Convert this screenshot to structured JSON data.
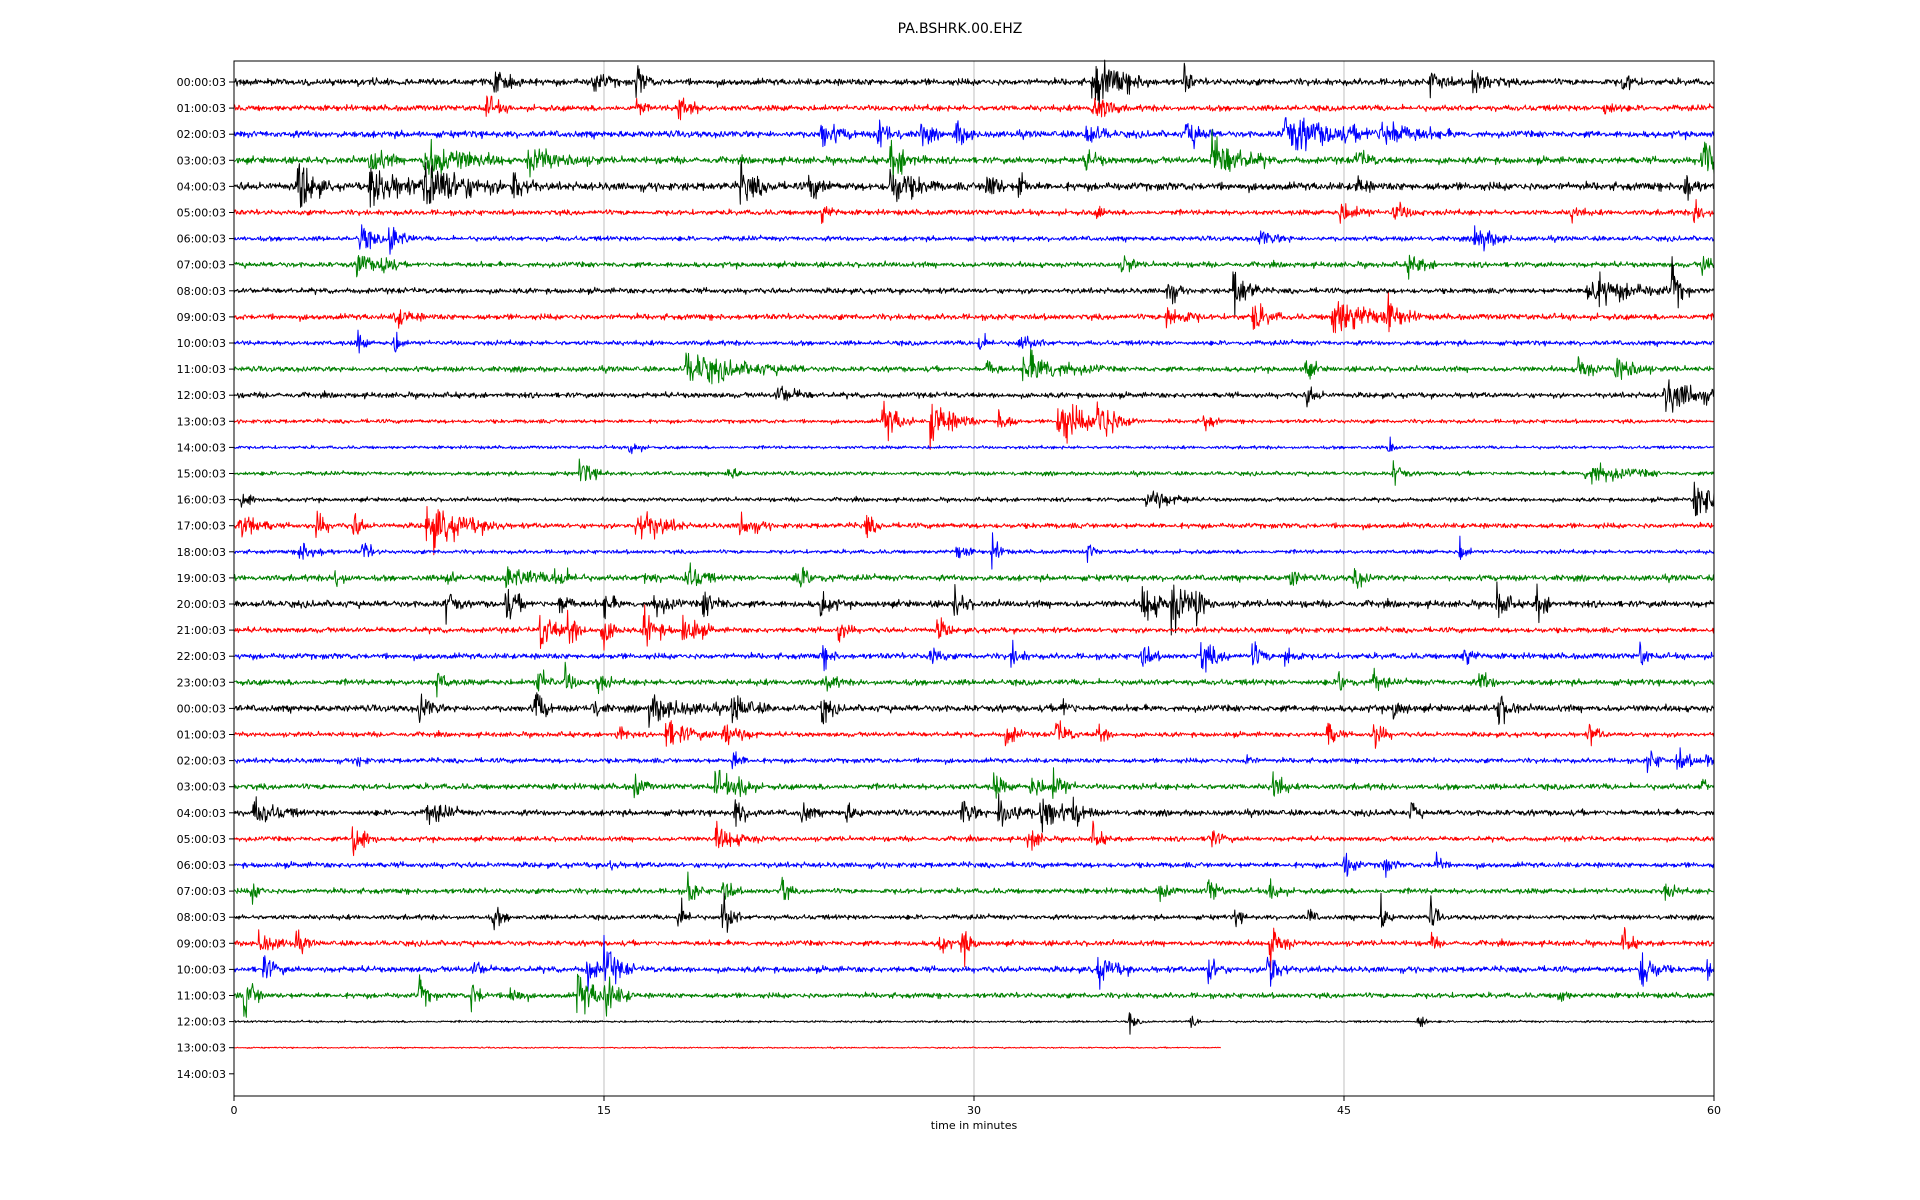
{
  "chart_data": {
    "type": "line",
    "title": "PA.BSHRK.00.EHZ",
    "xlabel": "time in minutes",
    "ylabel": "",
    "xlim": [
      0,
      60
    ],
    "x_ticks": [
      0,
      15,
      30,
      45,
      60
    ],
    "grid": "vertical",
    "row_labels": [
      "00:00:03",
      "01:00:03",
      "02:00:03",
      "03:00:03",
      "04:00:03",
      "05:00:03",
      "06:00:03",
      "07:00:03",
      "08:00:03",
      "09:00:03",
      "10:00:03",
      "11:00:03",
      "12:00:03",
      "13:00:03",
      "14:00:03",
      "15:00:03",
      "16:00:03",
      "17:00:03",
      "18:00:03",
      "19:00:03",
      "20:00:03",
      "21:00:03",
      "22:00:03",
      "23:00:03",
      "00:00:03",
      "01:00:03",
      "02:00:03",
      "03:00:03",
      "04:00:03",
      "05:00:03",
      "06:00:03",
      "07:00:03",
      "08:00:03",
      "09:00:03",
      "10:00:03",
      "11:00:03",
      "12:00:03",
      "13:00:03",
      "14:00:03"
    ],
    "color_cycle": [
      "#000000",
      "#ff0000",
      "#0000ff",
      "#008000"
    ],
    "row_end_minutes": [
      60,
      60,
      60,
      60,
      60,
      60,
      60,
      60,
      60,
      60,
      60,
      60,
      60,
      60,
      60,
      60,
      60,
      60,
      60,
      60,
      60,
      60,
      60,
      60,
      60,
      60,
      60,
      60,
      60,
      60,
      60,
      60,
      60,
      60,
      60,
      60,
      60,
      40,
      0
    ],
    "row_noise_level": [
      0.25,
      0.22,
      0.25,
      0.25,
      0.3,
      0.2,
      0.18,
      0.2,
      0.2,
      0.22,
      0.18,
      0.2,
      0.2,
      0.15,
      0.12,
      0.15,
      0.15,
      0.2,
      0.15,
      0.22,
      0.25,
      0.2,
      0.22,
      0.22,
      0.25,
      0.18,
      0.18,
      0.22,
      0.22,
      0.18,
      0.2,
      0.2,
      0.18,
      0.2,
      0.22,
      0.2,
      0.08,
      0.05,
      0
    ],
    "events": [
      [
        [
          10.5,
          0.6,
          0.5
        ],
        [
          14.5,
          0.5,
          0.5
        ],
        [
          16.3,
          0.8,
          0.3
        ],
        [
          34.8,
          1.2,
          1.0
        ],
        [
          38.5,
          0.9,
          0.2
        ],
        [
          48.5,
          0.5,
          0.5
        ],
        [
          50.2,
          0.6,
          0.6
        ],
        [
          56.3,
          0.5,
          0.3
        ]
      ],
      [
        [
          10.2,
          0.6,
          0.4
        ],
        [
          16.3,
          0.6,
          0.2
        ],
        [
          18.0,
          0.9,
          0.4
        ],
        [
          34.8,
          0.8,
          0.5
        ],
        [
          55.5,
          0.4,
          0.4
        ]
      ],
      [
        [
          23.8,
          0.6,
          0.6
        ],
        [
          26.1,
          0.8,
          0.4
        ],
        [
          27.8,
          0.8,
          0.3
        ],
        [
          29.2,
          0.7,
          0.4
        ],
        [
          34.5,
          0.6,
          0.5
        ],
        [
          38.6,
          0.7,
          0.5
        ],
        [
          42.5,
          0.9,
          2.0
        ],
        [
          46.5,
          0.6,
          1.2
        ]
      ],
      [
        [
          5.5,
          0.8,
          0.5
        ],
        [
          7.7,
          1.0,
          1.3
        ],
        [
          11.9,
          0.6,
          1.2
        ],
        [
          26.6,
          0.9,
          0.6
        ],
        [
          34.5,
          0.5,
          0.4
        ],
        [
          39.6,
          1.1,
          1.0
        ],
        [
          45.5,
          0.5,
          0.4
        ],
        [
          59.5,
          1.3,
          0.5
        ]
      ],
      [
        [
          2.6,
          1.3,
          0.5
        ],
        [
          5.5,
          1.2,
          0.9
        ],
        [
          7.7,
          1.3,
          1.3
        ],
        [
          11.3,
          1.2,
          0.4
        ],
        [
          20.5,
          0.9,
          0.6
        ],
        [
          23.3,
          0.7,
          0.4
        ],
        [
          26.6,
          1.0,
          0.8
        ],
        [
          30.5,
          1.1,
          0.3
        ],
        [
          31.8,
          1.0,
          0.2
        ],
        [
          45.5,
          0.5,
          0.3
        ],
        [
          58.8,
          0.8,
          0.3
        ]
      ],
      [
        [
          23.8,
          0.5,
          0.3
        ],
        [
          35.0,
          0.4,
          0.2
        ],
        [
          44.8,
          0.5,
          0.6
        ],
        [
          47.0,
          0.5,
          0.5
        ],
        [
          54.2,
          0.4,
          0.3
        ],
        [
          59.2,
          0.6,
          0.3
        ]
      ],
      [
        [
          5.1,
          0.8,
          0.4
        ],
        [
          6.3,
          1.0,
          0.4
        ],
        [
          41.5,
          0.4,
          0.6
        ],
        [
          50.3,
          0.7,
          0.6
        ]
      ],
      [
        [
          5.0,
          0.8,
          0.4
        ],
        [
          6.0,
          0.8,
          0.3
        ],
        [
          36.0,
          0.6,
          0.3
        ],
        [
          47.6,
          0.5,
          0.5
        ],
        [
          59.5,
          0.6,
          0.3
        ]
      ],
      [
        [
          37.8,
          0.9,
          0.3
        ],
        [
          40.5,
          1.2,
          0.5
        ],
        [
          54.8,
          0.8,
          1.5
        ],
        [
          58.3,
          1.2,
          0.3
        ]
      ],
      [
        [
          6.5,
          0.5,
          0.5
        ],
        [
          37.8,
          0.7,
          0.6
        ],
        [
          41.3,
          0.7,
          0.5
        ],
        [
          44.5,
          0.9,
          1.5
        ],
        [
          46.8,
          0.7,
          0.3
        ]
      ],
      [
        [
          5.0,
          0.7,
          0.2
        ],
        [
          6.5,
          0.7,
          0.2
        ],
        [
          30.2,
          0.5,
          0.3
        ],
        [
          31.8,
          0.4,
          0.5
        ]
      ],
      [
        [
          18.3,
          0.7,
          2.0
        ],
        [
          30.5,
          0.5,
          0.3
        ],
        [
          32.0,
          0.8,
          1.3
        ],
        [
          43.4,
          0.6,
          0.3
        ],
        [
          54.5,
          0.7,
          0.4
        ],
        [
          56.0,
          0.8,
          0.6
        ]
      ],
      [
        [
          22.0,
          0.5,
          0.6
        ],
        [
          43.5,
          0.5,
          0.3
        ],
        [
          58.0,
          0.8,
          1.3
        ]
      ],
      [
        [
          26.3,
          1.2,
          0.5
        ],
        [
          28.2,
          1.1,
          0.8
        ],
        [
          31.0,
          0.9,
          0.3
        ],
        [
          33.4,
          1.3,
          0.8
        ],
        [
          35.0,
          1.2,
          0.7
        ],
        [
          39.3,
          0.5,
          0.3
        ]
      ],
      [
        [
          16.0,
          0.5,
          0.3
        ],
        [
          46.8,
          0.6,
          0.2
        ]
      ],
      [
        [
          14.0,
          0.6,
          0.5
        ],
        [
          20.0,
          0.4,
          0.3
        ],
        [
          47.0,
          0.6,
          0.3
        ],
        [
          54.8,
          0.6,
          1.2
        ]
      ],
      [
        [
          0.3,
          0.6,
          0.3
        ],
        [
          37.0,
          0.6,
          0.8
        ],
        [
          59.2,
          0.9,
          1.3
        ]
      ],
      [
        [
          0.2,
          0.8,
          0.6
        ],
        [
          3.3,
          0.8,
          0.3
        ],
        [
          4.8,
          0.7,
          0.3
        ],
        [
          7.8,
          1.1,
          1.3
        ],
        [
          16.3,
          1.0,
          0.8
        ],
        [
          20.5,
          0.6,
          0.5
        ],
        [
          25.6,
          0.6,
          0.3
        ]
      ],
      [
        [
          2.6,
          0.5,
          0.6
        ],
        [
          5.2,
          0.6,
          0.3
        ],
        [
          29.3,
          0.5,
          0.3
        ],
        [
          30.7,
          0.7,
          0.3
        ],
        [
          34.6,
          0.5,
          0.2
        ],
        [
          49.7,
          0.7,
          0.2
        ]
      ],
      [
        [
          4.1,
          0.5,
          0.3
        ],
        [
          8.6,
          0.6,
          0.2
        ],
        [
          11.0,
          0.7,
          0.8
        ],
        [
          13.0,
          0.6,
          0.5
        ],
        [
          16.6,
          0.5,
          0.3
        ],
        [
          18.3,
          0.8,
          0.5
        ],
        [
          22.8,
          0.5,
          0.6
        ],
        [
          42.8,
          0.5,
          0.3
        ],
        [
          45.4,
          0.6,
          0.3
        ]
      ],
      [
        [
          8.6,
          0.8,
          0.3
        ],
        [
          11.0,
          0.9,
          0.4
        ],
        [
          13.2,
          0.7,
          0.3
        ],
        [
          15.0,
          0.6,
          0.3
        ],
        [
          17.0,
          0.6,
          0.5
        ],
        [
          19.0,
          0.6,
          0.5
        ],
        [
          23.8,
          0.8,
          0.3
        ],
        [
          29.2,
          0.8,
          0.3
        ],
        [
          36.8,
          1.0,
          0.6
        ],
        [
          38.0,
          1.3,
          0.6
        ],
        [
          39.0,
          0.9,
          0.3
        ],
        [
          51.2,
          1.0,
          0.3
        ],
        [
          52.8,
          0.9,
          0.3
        ]
      ],
      [
        [
          12.4,
          1.0,
          0.5
        ],
        [
          13.5,
          0.9,
          0.4
        ],
        [
          14.9,
          0.8,
          0.4
        ],
        [
          16.6,
          0.9,
          0.5
        ],
        [
          18.2,
          0.9,
          0.5
        ],
        [
          24.5,
          0.6,
          0.3
        ],
        [
          28.5,
          0.6,
          0.3
        ]
      ],
      [
        [
          23.8,
          0.6,
          0.3
        ],
        [
          28.2,
          0.6,
          0.3
        ],
        [
          31.5,
          0.6,
          0.3
        ],
        [
          36.8,
          0.7,
          0.3
        ],
        [
          39.2,
          0.8,
          0.5
        ],
        [
          41.3,
          0.7,
          0.3
        ],
        [
          42.6,
          0.8,
          0.3
        ],
        [
          49.8,
          0.6,
          0.3
        ],
        [
          57.0,
          0.7,
          0.2
        ]
      ],
      [
        [
          8.2,
          0.6,
          0.3
        ],
        [
          12.3,
          0.9,
          0.3
        ],
        [
          13.4,
          0.7,
          0.3
        ],
        [
          14.7,
          0.6,
          0.3
        ],
        [
          24.0,
          0.5,
          0.3
        ],
        [
          44.8,
          0.6,
          0.3
        ],
        [
          46.2,
          0.6,
          0.3
        ],
        [
          50.5,
          0.6,
          0.3
        ]
      ],
      [
        [
          7.5,
          0.7,
          0.4
        ],
        [
          12.2,
          1.1,
          0.3
        ],
        [
          14.5,
          0.5,
          0.3
        ],
        [
          16.8,
          0.6,
          1.2
        ],
        [
          20.2,
          0.7,
          0.6
        ],
        [
          23.8,
          0.7,
          0.3
        ],
        [
          33.5,
          0.5,
          0.3
        ],
        [
          47.0,
          0.6,
          0.3
        ],
        [
          51.2,
          0.8,
          0.4
        ]
      ],
      [
        [
          15.5,
          0.5,
          0.3
        ],
        [
          17.5,
          0.7,
          0.8
        ],
        [
          19.8,
          0.7,
          0.6
        ],
        [
          31.3,
          0.8,
          0.3
        ],
        [
          33.3,
          0.7,
          0.4
        ],
        [
          35.0,
          0.6,
          0.3
        ],
        [
          44.3,
          0.8,
          0.3
        ],
        [
          46.2,
          0.8,
          0.3
        ],
        [
          54.9,
          0.6,
          0.3
        ]
      ],
      [
        [
          5.0,
          0.4,
          0.2
        ],
        [
          20.2,
          0.5,
          0.3
        ],
        [
          41.0,
          0.5,
          0.2
        ],
        [
          57.3,
          0.7,
          0.3
        ],
        [
          58.5,
          0.6,
          0.4
        ],
        [
          59.7,
          0.5,
          0.2
        ]
      ],
      [
        [
          16.2,
          0.6,
          0.3
        ],
        [
          19.5,
          0.7,
          0.6
        ],
        [
          20.5,
          0.7,
          0.3
        ],
        [
          30.8,
          0.7,
          0.3
        ],
        [
          32.3,
          0.6,
          0.4
        ],
        [
          33.2,
          0.7,
          0.4
        ],
        [
          42.1,
          0.9,
          0.3
        ],
        [
          59.5,
          0.5,
          0.2
        ]
      ],
      [
        [
          0.8,
          0.6,
          0.8
        ],
        [
          7.8,
          0.6,
          0.6
        ],
        [
          20.3,
          0.7,
          0.4
        ],
        [
          23.0,
          0.6,
          0.3
        ],
        [
          24.8,
          0.5,
          0.3
        ],
        [
          29.5,
          0.7,
          0.4
        ],
        [
          31.0,
          1.0,
          0.6
        ],
        [
          32.7,
          1.0,
          0.6
        ],
        [
          34.0,
          0.7,
          0.4
        ],
        [
          47.7,
          0.7,
          0.2
        ]
      ],
      [
        [
          4.8,
          1.2,
          0.4
        ],
        [
          19.5,
          0.6,
          0.8
        ],
        [
          32.2,
          0.8,
          0.3
        ],
        [
          34.8,
          0.6,
          0.3
        ],
        [
          39.5,
          0.5,
          0.4
        ]
      ],
      [
        [
          15.2,
          0.4,
          0.2
        ],
        [
          45.0,
          0.8,
          0.3
        ],
        [
          46.5,
          0.6,
          0.3
        ],
        [
          48.7,
          0.9,
          0.2
        ]
      ],
      [
        [
          0.7,
          0.5,
          0.3
        ],
        [
          18.4,
          0.7,
          0.3
        ],
        [
          19.8,
          0.7,
          0.3
        ],
        [
          22.2,
          0.9,
          0.2
        ],
        [
          37.5,
          0.5,
          0.3
        ],
        [
          39.5,
          0.7,
          0.3
        ],
        [
          42.0,
          0.7,
          0.3
        ],
        [
          58.0,
          0.4,
          0.3
        ]
      ],
      [
        [
          10.5,
          0.6,
          0.3
        ],
        [
          18.0,
          0.9,
          0.3
        ],
        [
          19.8,
          1.2,
          0.3
        ],
        [
          40.6,
          0.5,
          0.2
        ],
        [
          43.5,
          0.6,
          0.2
        ],
        [
          46.5,
          0.9,
          0.2
        ],
        [
          48.5,
          0.9,
          0.2
        ]
      ],
      [
        [
          1.0,
          0.5,
          0.6
        ],
        [
          2.5,
          0.5,
          0.3
        ],
        [
          28.6,
          0.9,
          0.2
        ],
        [
          29.5,
          0.9,
          0.3
        ],
        [
          42.0,
          1.0,
          0.4
        ],
        [
          48.5,
          0.5,
          0.2
        ],
        [
          56.3,
          0.6,
          0.3
        ]
      ],
      [
        [
          1.2,
          0.6,
          0.4
        ],
        [
          9.7,
          0.5,
          0.3
        ],
        [
          14.3,
          1.0,
          0.3
        ],
        [
          15.0,
          1.1,
          0.5
        ],
        [
          35.0,
          0.7,
          0.6
        ],
        [
          39.5,
          0.8,
          0.3
        ],
        [
          41.9,
          1.3,
          0.4
        ],
        [
          57.0,
          1.0,
          0.5
        ],
        [
          59.7,
          0.7,
          0.3
        ]
      ],
      [
        [
          0.4,
          1.0,
          0.4
        ],
        [
          7.5,
          0.8,
          0.3
        ],
        [
          9.6,
          0.8,
          0.3
        ],
        [
          11.2,
          0.7,
          0.3
        ],
        [
          13.9,
          1.2,
          0.6
        ],
        [
          15.0,
          1.0,
          0.5
        ],
        [
          53.7,
          0.5,
          0.2
        ]
      ],
      [
        [
          36.3,
          0.5,
          0.2
        ],
        [
          38.8,
          0.4,
          0.2
        ],
        [
          48.0,
          0.7,
          0.2
        ]
      ],
      [],
      []
    ]
  }
}
